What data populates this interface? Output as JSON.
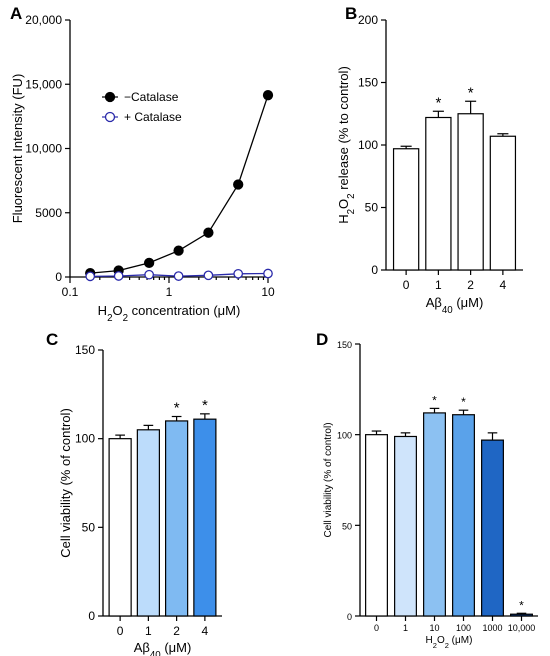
{
  "chart_data": [
    {
      "panel": "A",
      "type": "line",
      "xscale": "log",
      "xlim": [
        0.1,
        10
      ],
      "ylim": [
        0,
        20000
      ],
      "x_ticks": [
        "0.1",
        "1",
        "10"
      ],
      "y_ticks": [
        "0",
        "5000",
        "10,000",
        "15,000",
        "20,000"
      ],
      "ylabel": "Fluorescent Intensity (FU)",
      "xlabel_parts": [
        "H",
        "2",
        "O",
        "2",
        "  concentration (μM)"
      ],
      "series": [
        {
          "name": "−Catalase",
          "color": "#000000",
          "marker": "filled-circle",
          "x": [
            0.16,
            0.31,
            0.63,
            1.25,
            2.5,
            5,
            10
          ],
          "y": [
            300,
            500,
            1100,
            2050,
            3450,
            7200,
            14150
          ]
        },
        {
          "name": "+ Catalase",
          "color": "#2a2aaa",
          "marker": "open-circle",
          "x": [
            0.16,
            0.31,
            0.63,
            1.25,
            2.5,
            5,
            10
          ],
          "y": [
            50,
            80,
            180,
            70,
            130,
            250,
            270
          ]
        }
      ]
    },
    {
      "panel": "B",
      "type": "bar",
      "categories": [
        "0",
        "1",
        "2",
        "4"
      ],
      "values": [
        97,
        122,
        125,
        107
      ],
      "errors": [
        2,
        5,
        10,
        2
      ],
      "significance": [
        "",
        "*",
        "*",
        ""
      ],
      "bar_colors": [
        "#ffffff",
        "#ffffff",
        "#ffffff",
        "#ffffff"
      ],
      "ylim": [
        0,
        200
      ],
      "y_ticks": [
        "0",
        "50",
        "100",
        "150",
        "200"
      ],
      "ylabel_parts": [
        "H",
        "2",
        "O",
        "2",
        " release (% to control)"
      ],
      "xlabel_parts": [
        "Aβ",
        "40",
        "  (μM)"
      ]
    },
    {
      "panel": "C",
      "type": "bar",
      "categories": [
        "0",
        "1",
        "2",
        "4"
      ],
      "values": [
        100,
        105,
        110,
        111
      ],
      "errors": [
        2,
        2.5,
        2.5,
        3
      ],
      "significance": [
        "",
        "",
        "*",
        "*"
      ],
      "bar_colors": [
        "#ffffff",
        "#bcdcfb",
        "#7fbaf2",
        "#3d8fea"
      ],
      "ylim": [
        0,
        150
      ],
      "y_ticks": [
        "0",
        "50",
        "100",
        "150"
      ],
      "ylabel": "Cell viability (% of control)",
      "xlabel_parts": [
        "Aβ",
        "40",
        "  (μM)"
      ]
    },
    {
      "panel": "D",
      "type": "bar",
      "categories": [
        "0",
        "1",
        "10",
        "100",
        "1000",
        "10,000"
      ],
      "values": [
        100,
        99,
        112,
        111,
        97,
        1
      ],
      "errors": [
        2,
        2,
        2.5,
        2.5,
        4,
        0.5
      ],
      "significance": [
        "",
        "",
        "*",
        "*",
        "",
        "*"
      ],
      "bar_colors": [
        "#ffffff",
        "#cfe4fb",
        "#8cc1f2",
        "#5aa2ea",
        "#1f66c4",
        "#0b3e8c"
      ],
      "ylim": [
        0,
        150
      ],
      "y_ticks": [
        "0",
        "50",
        "100",
        "150"
      ],
      "ylabel": "Cell viability (% of control)",
      "xlabel_parts": [
        "H",
        "2",
        "O",
        "2",
        "  (μM)"
      ]
    }
  ]
}
